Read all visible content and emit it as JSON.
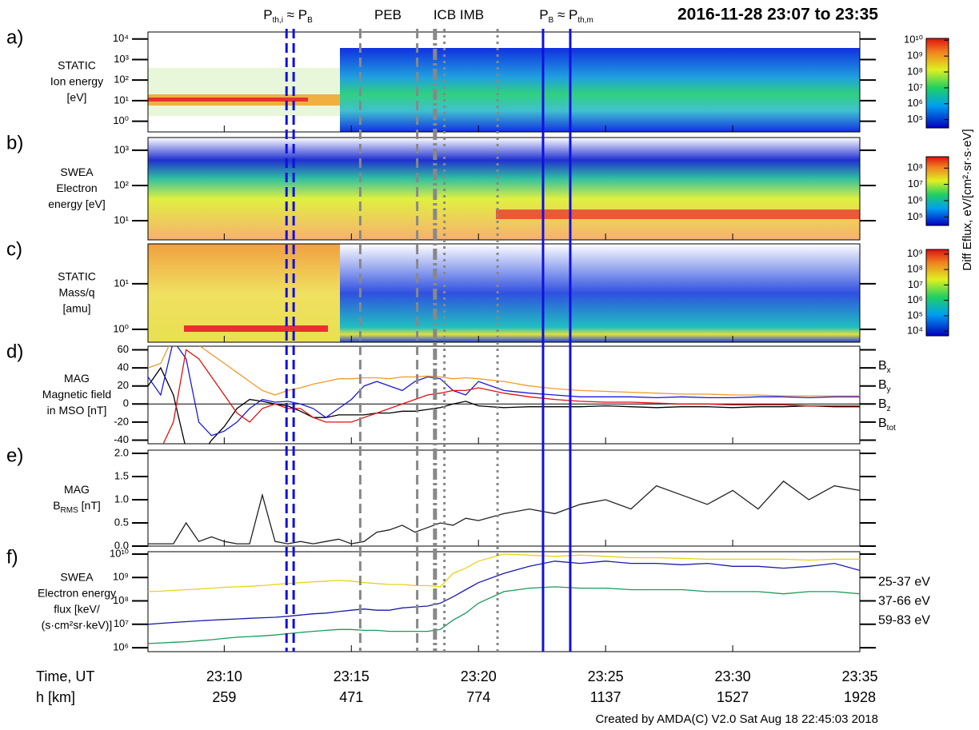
{
  "title": "2016-11-28 23:07 to 23:35",
  "footer": "Created  by  AMDA(C)  V2.0  Sat  Aug  18  22:45:03  2018",
  "x_axis": {
    "label": "Time, UT",
    "xlim": [
      7,
      35
    ],
    "xticks": [
      {
        "value": 10,
        "label": "23:10"
      },
      {
        "value": 15,
        "label": "23:15"
      },
      {
        "value": 20,
        "label": "23:20"
      },
      {
        "value": 25,
        "label": "23:25"
      },
      {
        "value": 30,
        "label": "23:30"
      },
      {
        "value": 35,
        "label": "23:35"
      }
    ],
    "h_label": "h [km]",
    "h_values": [
      259,
      471,
      774,
      1137,
      1527,
      1928
    ]
  },
  "markers": [
    {
      "x": 12.45,
      "color": "#1010e0",
      "style": "dashed"
    },
    {
      "x": 12.73,
      "color": "#1010e0",
      "style": "dashed"
    },
    {
      "x": 15.35,
      "color": "#888888",
      "style": "dashed"
    },
    {
      "x": 17.59,
      "color": "#888888",
      "style": "dashed"
    },
    {
      "x": 18.29,
      "color": "#888888",
      "style": "dashdot"
    },
    {
      "x": 18.66,
      "color": "#888888",
      "style": "dotted"
    },
    {
      "x": 20.75,
      "color": "#888888",
      "style": "dotted"
    },
    {
      "x": 22.54,
      "color": "#1010e0",
      "style": "solid"
    },
    {
      "x": 23.61,
      "color": "#1010e0",
      "style": "solid"
    }
  ],
  "marker_labels": [
    {
      "parts": [
        "P",
        "th,i",
        " ≈ P",
        "B"
      ],
      "color": "#1010e0"
    },
    {
      "parts": [
        "PEB"
      ],
      "color": "#333333"
    },
    {
      "parts": [
        "ICB"
      ],
      "color": "#333333"
    },
    {
      "parts": [
        "IMB"
      ],
      "color": "#333333"
    },
    {
      "parts": [
        "P",
        "B",
        " ≈ P",
        "th,m"
      ],
      "color": "#1010e0"
    }
  ],
  "colorbar_label": "Diff Eflux, eV/[cm²·sr·s·eV]",
  "colorbars": [
    {
      "lim": [
        30000,
        13000000000
      ],
      "ticks": [
        {
          "value": 10000000000,
          "label": "10¹⁰"
        },
        {
          "value": 1000000000,
          "label": "10⁹"
        },
        {
          "value": 100000000,
          "label": "10⁸"
        },
        {
          "value": 10000000,
          "label": "10⁷"
        },
        {
          "value": 1000000,
          "label": "10⁶"
        },
        {
          "value": 100000,
          "label": "10⁵"
        }
      ]
    },
    {
      "lim": [
        30000,
        500000000
      ],
      "ticks": [
        {
          "value": 100000000,
          "label": "10⁸"
        },
        {
          "value": 10000000,
          "label": "10⁷"
        },
        {
          "value": 1000000,
          "label": "10⁶"
        },
        {
          "value": 100000,
          "label": "10⁵"
        }
      ]
    },
    {
      "lim": [
        5000,
        2000000000
      ],
      "ticks": [
        {
          "value": 1000000000,
          "label": "10⁹"
        },
        {
          "value": 100000000,
          "label": "10⁸"
        },
        {
          "value": 10000000,
          "label": "10⁷"
        },
        {
          "value": 1000000,
          "label": "10⁶"
        },
        {
          "value": 100000,
          "label": "10⁵"
        },
        {
          "value": 10000,
          "label": "10⁴"
        }
      ]
    }
  ],
  "chart_data": [
    {
      "type": "spectrogram",
      "panel": "a)",
      "ylabel": [
        [
          "STATIC"
        ],
        [
          "Ion energy"
        ],
        [
          "[eV]"
        ]
      ],
      "log": true,
      "ylim": [
        0.3,
        22000
      ],
      "yticks": [
        {
          "value": 1,
          "label": "10⁰"
        },
        {
          "value": 10,
          "label": "10¹"
        },
        {
          "value": 100,
          "label": "10²"
        },
        {
          "value": 1000,
          "label": "10³"
        },
        {
          "value": 10000,
          "label": "10⁴"
        }
      ]
    },
    {
      "type": "spectrogram",
      "panel": "b)",
      "ylabel": [
        [
          "SWEA"
        ],
        [
          "Electron"
        ],
        [
          "energy [eV]"
        ]
      ],
      "log": true,
      "ylim": [
        2.85,
        2300
      ],
      "yticks": [
        {
          "value": 10,
          "label": "10¹"
        },
        {
          "value": 100,
          "label": "10²"
        },
        {
          "value": 1000,
          "label": "10³"
        }
      ]
    },
    {
      "type": "spectrogram",
      "panel": "c)",
      "ylabel": [
        [
          "STATIC"
        ],
        [
          "Mass/q"
        ],
        [
          "[amu]"
        ]
      ],
      "log": true,
      "ylim": [
        0.52,
        75
      ],
      "yticks": [
        {
          "value": 1,
          "label": "10⁰"
        },
        {
          "value": 10,
          "label": "10¹"
        }
      ]
    },
    {
      "type": "line",
      "panel": "d)",
      "ylabel": [
        [
          "MAG"
        ],
        [
          "Magnetic field"
        ],
        [
          "in MSO [nT]"
        ]
      ],
      "log": false,
      "ylim": [
        -44,
        64
      ],
      "yticks": [
        -40,
        -20,
        0,
        20,
        40,
        60
      ],
      "reference_line": 0,
      "legend": "right",
      "x": [
        7,
        7.5,
        8,
        8.5,
        9,
        9.5,
        10,
        10.5,
        11,
        11.5,
        12,
        12.5,
        13,
        13.5,
        14,
        14.5,
        15,
        15.5,
        16,
        16.5,
        17,
        17.5,
        18,
        18.5,
        19,
        19.5,
        20,
        21,
        22,
        23,
        24,
        25,
        26,
        27,
        28,
        29,
        30,
        31,
        32,
        33,
        34,
        35
      ],
      "series": [
        {
          "name": [
            "B",
            "x"
          ],
          "color": "#000000",
          "values": [
            20,
            40,
            10,
            -50,
            -60,
            -40,
            -25,
            -5,
            5,
            3,
            0,
            -2,
            -8,
            -15,
            -15,
            -12,
            -12,
            -12,
            -10,
            -10,
            -8,
            -8,
            -6,
            -4,
            0,
            3,
            -2,
            -4,
            -3,
            -3,
            -3,
            -2,
            -3,
            -4,
            -3,
            -3,
            -4,
            -3,
            -3,
            -2,
            -3,
            -3
          ]
        },
        {
          "name": [
            "B",
            "y"
          ],
          "color": "#1a1adc",
          "values": [
            30,
            10,
            70,
            50,
            -20,
            -35,
            -30,
            -20,
            -5,
            5,
            2,
            3,
            0,
            -5,
            -15,
            -5,
            5,
            20,
            25,
            20,
            15,
            25,
            30,
            28,
            15,
            10,
            25,
            15,
            12,
            10,
            8,
            8,
            8,
            7,
            8,
            7,
            7,
            8,
            8,
            7,
            8,
            8
          ]
        },
        {
          "name": [
            "B",
            "z"
          ],
          "color": "#e01010",
          "values": [
            -60,
            -50,
            -20,
            60,
            50,
            30,
            10,
            -10,
            -20,
            -5,
            0,
            -5,
            -5,
            -15,
            -20,
            -20,
            -20,
            -15,
            -10,
            -5,
            0,
            5,
            10,
            12,
            15,
            15,
            18,
            12,
            8,
            5,
            3,
            2,
            2,
            1,
            0,
            0,
            -1,
            -1,
            -1,
            -2,
            -2,
            -2
          ]
        },
        {
          "name": [
            "B",
            "tot"
          ],
          "color": "#f39a2e",
          "values": [
            40,
            45,
            75,
            70,
            65,
            55,
            45,
            35,
            25,
            15,
            10,
            15,
            18,
            22,
            25,
            28,
            28,
            29,
            29,
            28,
            30,
            30,
            31,
            30,
            28,
            29,
            28,
            25,
            20,
            17,
            15,
            14,
            13,
            12,
            11,
            11,
            10,
            10,
            9,
            9,
            9,
            9
          ]
        }
      ]
    },
    {
      "type": "line",
      "panel": "e)",
      "ylabel": [
        [
          "MAG"
        ],
        [
          "B",
          "RMS",
          " [nT]"
        ]
      ],
      "log": false,
      "ylim": [
        0,
        2.07
      ],
      "yticks": [
        {
          "value": 0,
          "label": "0.0"
        },
        0.5,
        {
          "value": 1,
          "label": "1.0"
        },
        1.5,
        {
          "value": 2,
          "label": "2.0"
        }
      ],
      "x": [
        7,
        7.5,
        8,
        8.5,
        9,
        9.5,
        10,
        10.5,
        11,
        11.5,
        12,
        12.5,
        13,
        13.5,
        14,
        14.5,
        15,
        15.5,
        16,
        16.5,
        17,
        17.5,
        18,
        18.5,
        19,
        19.5,
        20,
        21,
        22,
        23,
        24,
        25,
        26,
        27,
        28,
        29,
        30,
        31,
        32,
        33,
        34,
        35
      ],
      "series": [
        {
          "color": "#222222",
          "values": [
            0.05,
            0.05,
            0.05,
            0.5,
            0.1,
            0.2,
            0.1,
            0.05,
            0.05,
            1.1,
            0.1,
            0.05,
            0.1,
            0.05,
            0.1,
            0.15,
            0.05,
            0.1,
            0.3,
            0.35,
            0.45,
            0.3,
            0.4,
            0.5,
            0.45,
            0.6,
            0.55,
            0.7,
            0.8,
            0.7,
            0.9,
            1.0,
            0.8,
            1.3,
            1.1,
            0.9,
            1.2,
            0.8,
            1.4,
            1.0,
            1.3,
            1.2
          ]
        }
      ]
    },
    {
      "type": "line",
      "panel": "f)",
      "ylabel": [
        [
          "SWEA"
        ],
        [
          "Electron energy"
        ],
        [
          "flux [keV/"
        ],
        [
          "(s·cm²sr·keV)]"
        ]
      ],
      "log": true,
      "ylim": [
        680000,
        12600000000
      ],
      "legend": "right",
      "yticks": [
        {
          "value": 1000000,
          "label": "10⁶"
        },
        {
          "value": 10000000,
          "label": "10⁷"
        },
        {
          "value": 100000000,
          "label": "10⁸"
        },
        {
          "value": 1000000000,
          "label": "10⁹"
        },
        {
          "value": 10000000000,
          "label": "10¹⁰"
        }
      ],
      "x": [
        7,
        7.5,
        8,
        8.5,
        9,
        9.5,
        10,
        10.5,
        11,
        11.5,
        12,
        12.5,
        13,
        13.5,
        14,
        14.5,
        15,
        15.5,
        16,
        16.5,
        17,
        17.5,
        18,
        18.5,
        19,
        19.5,
        20,
        21,
        22,
        23,
        24,
        25,
        26,
        27,
        28,
        29,
        30,
        31,
        32,
        33,
        34,
        35
      ],
      "series": [
        {
          "name": [
            "25-37 eV"
          ],
          "color": "#e8d21a",
          "values": [
            250000000.0,
            260000000.0,
            280000000.0,
            300000000.0,
            320000000.0,
            350000000.0,
            380000000.0,
            400000000.0,
            420000000.0,
            450000000.0,
            500000000.0,
            550000000.0,
            600000000.0,
            650000000.0,
            700000000.0,
            750000000.0,
            700000000.0,
            600000000.0,
            550000000.0,
            500000000.0,
            500000000.0,
            450000000.0,
            450000000.0,
            400000000.0,
            1500000000.0,
            2500000000.0,
            5000000000.0,
            10000000000.0,
            9000000000.0,
            8000000000.0,
            9000000000.0,
            8000000000.0,
            7000000000.0,
            7000000000.0,
            6500000000.0,
            6000000000.0,
            6000000000.0,
            6000000000.0,
            6000000000.0,
            5500000000.0,
            6000000000.0,
            6000000000.0
          ]
        },
        {
          "name": [
            "37-66 eV"
          ],
          "color": "#1a1aa8",
          "values": [
            10000000.0,
            11000000.0,
            12000000.0,
            13000000.0,
            14000000.0,
            15000000.0,
            16000000.0,
            17000000.0,
            18000000.0,
            19000000.0,
            20000000.0,
            22000000.0,
            25000000.0,
            28000000.0,
            30000000.0,
            35000000.0,
            40000000.0,
            45000000.0,
            40000000.0,
            40000000.0,
            50000000.0,
            55000000.0,
            60000000.0,
            80000000.0,
            150000000.0,
            300000000.0,
            600000000.0,
            1500000000.0,
            3000000000.0,
            5000000000.0,
            4000000000.0,
            5000000000.0,
            4000000000.0,
            4000000000.0,
            3500000000.0,
            4000000000.0,
            3000000000.0,
            3000000000.0,
            2500000000.0,
            3000000000.0,
            4000000000.0,
            2000000000.0
          ]
        },
        {
          "name": [
            "59-83 eV"
          ],
          "color": "#1a9a5a",
          "values": [
            1500000.0,
            1600000.0,
            1700000.0,
            1800000.0,
            2000000.0,
            2200000.0,
            2500000.0,
            2800000.0,
            3000000.0,
            3200000.0,
            3500000.0,
            4000000.0,
            4500000.0,
            5000000.0,
            5500000.0,
            6000000.0,
            6000000.0,
            5500000.0,
            5500000.0,
            5000000.0,
            5000000.0,
            5000000.0,
            5000000.0,
            6000000.0,
            15000000.0,
            30000000.0,
            80000000.0,
            250000000.0,
            350000000.0,
            400000000.0,
            350000000.0,
            350000000.0,
            300000000.0,
            300000000.0,
            300000000.0,
            250000000.0,
            250000000.0,
            250000000.0,
            200000000.0,
            250000000.0,
            250000000.0,
            200000000.0
          ]
        }
      ]
    }
  ]
}
